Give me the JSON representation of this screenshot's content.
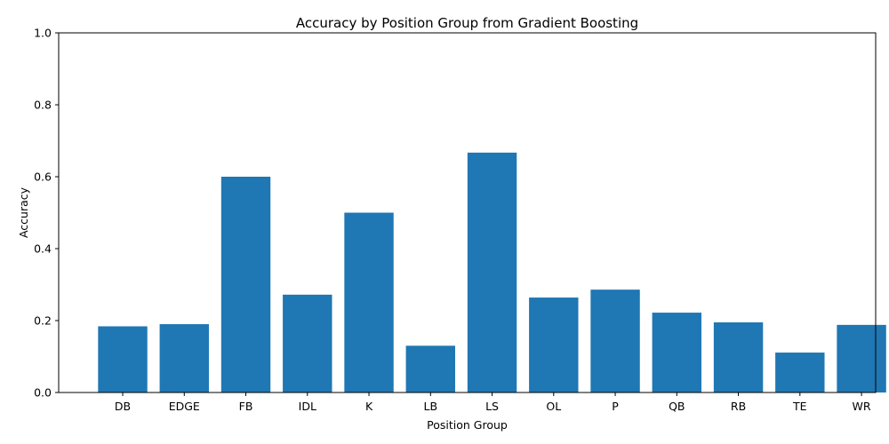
{
  "chart_data": {
    "type": "bar",
    "title": "Accuracy by Position Group from Gradient Boosting",
    "xlabel": "Position Group",
    "ylabel": "Accuracy",
    "categories": [
      "DB",
      "EDGE",
      "FB",
      "IDL",
      "K",
      "LB",
      "LS",
      "OL",
      "P",
      "QB",
      "RB",
      "TE",
      "WR"
    ],
    "values": [
      0.184,
      0.19,
      0.6,
      0.272,
      0.5,
      0.13,
      0.667,
      0.264,
      0.286,
      0.222,
      0.195,
      0.111,
      0.188
    ],
    "ylim": [
      0,
      1.0
    ],
    "yticks": [
      "0.0",
      "0.2",
      "0.4",
      "0.6",
      "0.8",
      "1.0"
    ],
    "bar_color": "#1f77b4",
    "grid": false,
    "legend": "none"
  }
}
